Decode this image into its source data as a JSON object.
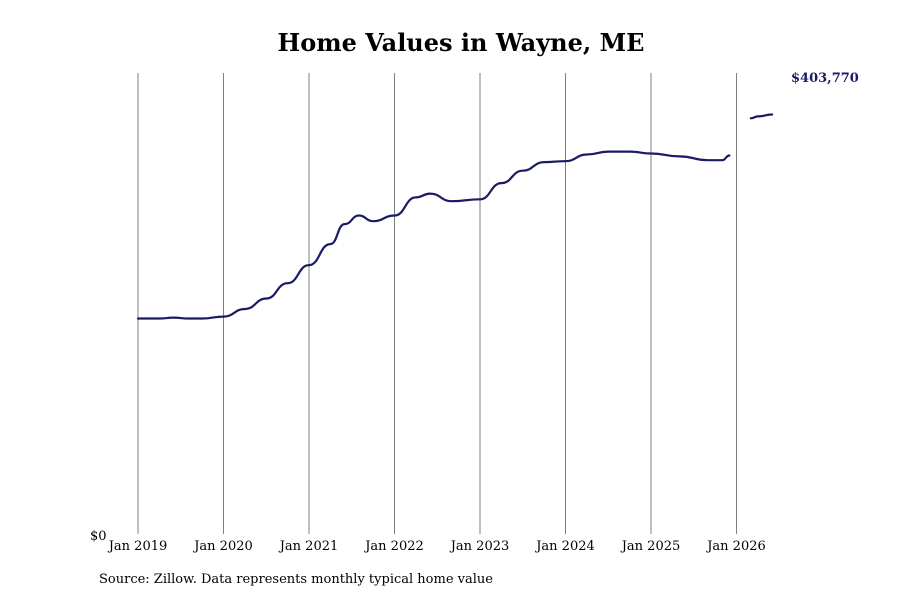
{
  "chart_data": {
    "type": "line",
    "title": "Home Values in Wayne, ME",
    "xlabel": "",
    "ylabel": "",
    "y_tick_label": "$0",
    "x_ticks": [
      "Jan 2019",
      "Jan 2020",
      "Jan 2021",
      "Jan 2022",
      "Jan 2023",
      "Jan 2024",
      "Jan 2025",
      "Jan 2026"
    ],
    "grid": "vertical lines at each January",
    "ylim": [
      0,
      430000
    ],
    "line_color": "#1a1a66",
    "end_value_label": "$403,770",
    "source": "Source: Zillow. Data represents monthly typical home value",
    "series": [
      {
        "points": [
          {
            "x": "2019-01",
            "y": 226000
          },
          {
            "x": "2019-04",
            "y": 226000
          },
          {
            "x": "2019-06",
            "y": 227000
          },
          {
            "x": "2019-08",
            "y": 226000
          },
          {
            "x": "2019-10",
            "y": 226000
          },
          {
            "x": "2020-01",
            "y": 228000
          },
          {
            "x": "2020-04",
            "y": 236000
          },
          {
            "x": "2020-07",
            "y": 247000
          },
          {
            "x": "2020-10",
            "y": 263000
          },
          {
            "x": "2021-01",
            "y": 282000
          },
          {
            "x": "2021-04",
            "y": 304000
          },
          {
            "x": "2021-06",
            "y": 325000
          },
          {
            "x": "2021-08",
            "y": 334000
          },
          {
            "x": "2021-10",
            "y": 328000
          },
          {
            "x": "2022-01",
            "y": 334000
          },
          {
            "x": "2022-04",
            "y": 353000
          },
          {
            "x": "2022-06",
            "y": 357000
          },
          {
            "x": "2022-09",
            "y": 349000
          },
          {
            "x": "2023-01",
            "y": 351000
          },
          {
            "x": "2023-04",
            "y": 368000
          },
          {
            "x": "2023-07",
            "y": 381000
          },
          {
            "x": "2023-10",
            "y": 390000
          },
          {
            "x": "2024-01",
            "y": 391000
          },
          {
            "x": "2024-04",
            "y": 398000
          },
          {
            "x": "2024-07",
            "y": 401000
          },
          {
            "x": "2024-10",
            "y": 401000
          },
          {
            "x": "2025-01",
            "y": 399000
          },
          {
            "x": "2025-05",
            "y": 396000
          },
          {
            "x": "2025-09",
            "y": 392000
          },
          {
            "x": "2025-11",
            "y": 392000
          },
          {
            "x": "2025-12",
            "y": 397000
          }
        ]
      },
      {
        "points": [
          {
            "x": "2026-03",
            "y": 436000
          },
          {
            "x": "2026-04",
            "y": 438000
          },
          {
            "x": "2026-06",
            "y": 440000
          }
        ]
      }
    ]
  }
}
